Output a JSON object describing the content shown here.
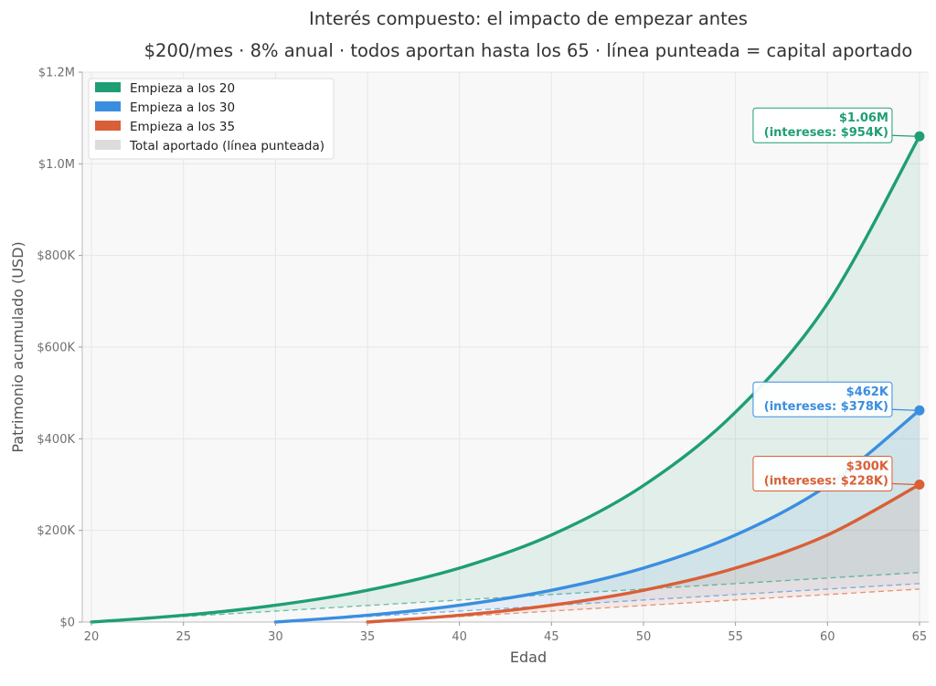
{
  "chart_data": {
    "type": "line",
    "title": "Interés compuesto: el impacto de empezar antes",
    "subtitle": "$200/mes · 8% anual · todos aportan hasta los 65 · línea punteada = capital aportado",
    "xlabel": "Edad",
    "ylabel": "Patrimonio acumulado (USD)",
    "xlim": [
      19.5,
      65.5
    ],
    "ylim": [
      0,
      1200000
    ],
    "x_ticks": [
      20,
      25,
      30,
      35,
      40,
      45,
      50,
      55,
      60,
      65
    ],
    "x_tick_labels": [
      "20",
      "25",
      "30",
      "35",
      "40",
      "45",
      "50",
      "55",
      "60",
      "65"
    ],
    "y_ticks": [
      0,
      200000,
      400000,
      600000,
      800000,
      1000000,
      1200000
    ],
    "y_tick_labels": [
      "$0",
      "$200K",
      "$400K",
      "$600K",
      "$800K",
      "$1.0M",
      "$1.2M"
    ],
    "grid": true,
    "legend_position": "top-left",
    "legend": [
      {
        "label": "Empieza a los 20",
        "color": "#1f9e75"
      },
      {
        "label": "Empieza a los 30",
        "color": "#3a8ee0"
      },
      {
        "label": "Empieza a los 35",
        "color": "#d95f36"
      },
      {
        "label": "Total aportado (línea punteada)",
        "color": "#dcdcdc"
      }
    ],
    "series": [
      {
        "name": "Empieza a los 20",
        "color": "#1f9e75",
        "x": [
          20,
          25,
          30,
          35,
          40,
          45,
          50,
          55,
          60,
          65
        ],
        "values": [
          0,
          14700,
          36600,
          69300,
          117800,
          190000,
          298000,
          458000,
          695000,
          1060000
        ],
        "contributed": [
          0,
          12000,
          24000,
          36000,
          48000,
          60000,
          72000,
          84000,
          96000,
          108000
        ]
      },
      {
        "name": "Empieza a los 30",
        "color": "#3a8ee0",
        "x": [
          30,
          35,
          40,
          45,
          50,
          55,
          60,
          65
        ],
        "values": [
          0,
          14700,
          36600,
          69300,
          117800,
          190000,
          298000,
          462000
        ],
        "contributed": [
          0,
          12000,
          24000,
          36000,
          48000,
          60000,
          72000,
          84000
        ]
      },
      {
        "name": "Empieza a los 35",
        "color": "#d95f36",
        "x": [
          35,
          40,
          45,
          50,
          55,
          60,
          65
        ],
        "values": [
          0,
          14700,
          36600,
          69300,
          117800,
          190000,
          300000
        ],
        "contributed": [
          0,
          12000,
          24000,
          36000,
          48000,
          60000,
          72000
        ]
      }
    ],
    "annotations": [
      {
        "line1": "$1.06M",
        "line2": "(intereses: $954K)",
        "color": "#1f9e75",
        "x": 65,
        "y": 1060000
      },
      {
        "line1": "$462K",
        "line2": "(intereses: $378K)",
        "color": "#3a8ee0",
        "x": 65,
        "y": 462000
      },
      {
        "line1": "$300K",
        "line2": "(intereses: $228K)",
        "color": "#d95f36",
        "x": 65,
        "y": 300000
      }
    ]
  }
}
